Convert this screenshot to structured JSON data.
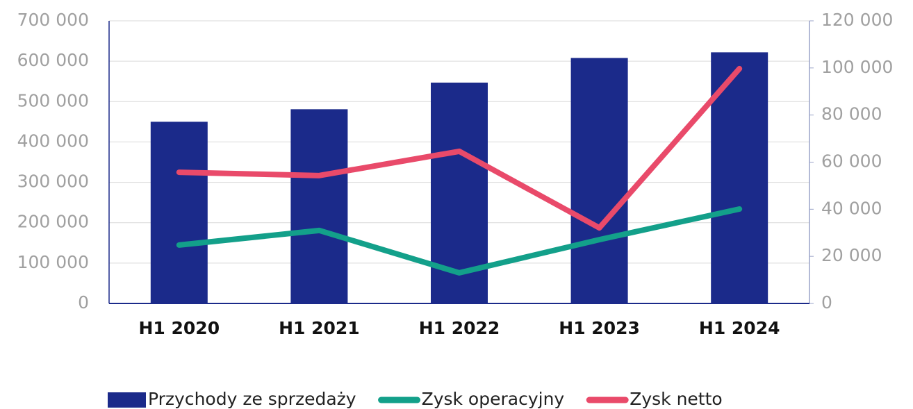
{
  "chart_data": {
    "type": "bar_line",
    "categories": [
      "H1 2020",
      "H1 2021",
      "H1 2022",
      "H1 2023",
      "H1 2024"
    ],
    "series": [
      {
        "name": "Przychody ze sprzedaży",
        "type": "bar",
        "color": "#1b2a8a",
        "values": [
          450000,
          481000,
          547000,
          608000,
          622000
        ]
      },
      {
        "name": "Zysk operacyjny",
        "type": "line",
        "axis": "y2",
        "color": "#13a08a",
        "values": [
          24800,
          31000,
          13000,
          27100,
          40100
        ]
      },
      {
        "name": "Zysk netto",
        "type": "line",
        "axis": "y2",
        "color": "#e94a6a",
        "values": [
          55700,
          54300,
          64600,
          32100,
          99700
        ]
      }
    ],
    "ylim": [
      0,
      700000
    ],
    "yticks": [
      0,
      {
        "value": 100000,
        "label": "100 000"
      },
      {
        "value": 200000,
        "label": "200 000"
      },
      {
        "value": 300000,
        "label": "300 000"
      },
      {
        "value": 400000,
        "label": "400 000"
      },
      {
        "value": 500000,
        "label": "500 000"
      },
      {
        "value": 600000,
        "label": "600 000"
      },
      {
        "value": 700000,
        "label": "700 000"
      }
    ],
    "y2lim": [
      0,
      120000
    ],
    "y2ticks": [
      0,
      {
        "value": 20000,
        "label": "20 000"
      },
      {
        "value": 40000,
        "label": "40 000"
      },
      {
        "value": 60000,
        "label": "60 000"
      },
      {
        "value": 80000,
        "label": "80 000"
      },
      {
        "value": 100000,
        "label": "100 000"
      },
      {
        "value": 120000,
        "label": "120 000"
      }
    ],
    "grid": true,
    "legend": "bottom"
  }
}
